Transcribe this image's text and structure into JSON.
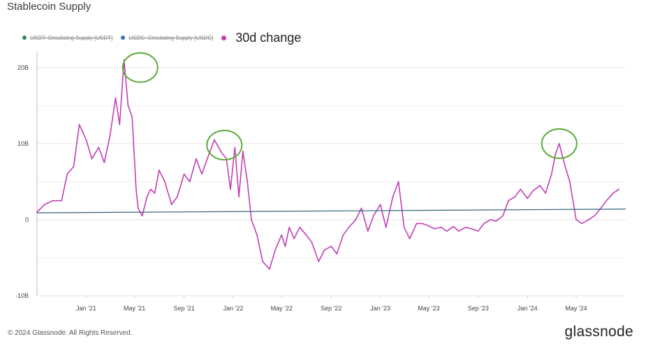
{
  "header": {
    "title": "Stablecoin Supply"
  },
  "legend": [
    {
      "label": "USDT: Circulating Supply [USDT]",
      "color": "#2e8b57",
      "struck": true
    },
    {
      "label": "USDC: Circulating Supply [USDC]",
      "color": "#3b6fb6",
      "struck": true
    },
    {
      "label": "30d change",
      "color": "#c23fb5",
      "struck": false
    }
  ],
  "footer": {
    "copyright": "© 2024 Glassnode. All Rights Reserved."
  },
  "brand": {
    "name": "glassnode"
  },
  "colors": {
    "series": "#c23fb5",
    "trend": "#2f5f7a",
    "highlight": "#5cab3c",
    "grid": "#e6e6e6"
  },
  "chart_data": {
    "type": "line",
    "y_ticks": [
      {
        "value": 20000000000,
        "label": "20B"
      },
      {
        "value": 10000000000,
        "label": "10B"
      },
      {
        "value": 0,
        "label": "0"
      },
      {
        "value": -10000000000,
        "label": "-10B"
      }
    ],
    "x_ticks": [
      {
        "value": "2021-01-01",
        "label": "Jan '21"
      },
      {
        "value": "2021-05-01",
        "label": "May '21"
      },
      {
        "value": "2021-09-01",
        "label": "Sep '21"
      },
      {
        "value": "2022-01-01",
        "label": "Jan '22"
      },
      {
        "value": "2022-05-01",
        "label": "May '22"
      },
      {
        "value": "2022-09-01",
        "label": "Sep '22"
      },
      {
        "value": "2023-01-01",
        "label": "Jan '23"
      },
      {
        "value": "2023-05-01",
        "label": "May '23"
      },
      {
        "value": "2023-09-01",
        "label": "Sep '23"
      },
      {
        "value": "2024-01-01",
        "label": "Jan '24"
      },
      {
        "value": "2024-05-01",
        "label": "May '24"
      }
    ],
    "ylim": [
      -10000000000,
      22000000000
    ],
    "xlim": [
      "2020-09-01",
      "2024-09-01"
    ],
    "series": [
      {
        "color": "#c23fb5",
        "x": [
          "2020-09-01",
          "2020-09-20",
          "2020-10-10",
          "2020-11-01",
          "2020-11-15",
          "2020-12-01",
          "2020-12-15",
          "2021-01-01",
          "2021-01-15",
          "2021-02-01",
          "2021-02-15",
          "2021-03-01",
          "2021-03-15",
          "2021-03-25",
          "2021-04-05",
          "2021-04-15",
          "2021-04-25",
          "2021-05-05",
          "2021-05-10",
          "2021-05-15",
          "2021-05-20",
          "2021-06-01",
          "2021-06-10",
          "2021-06-20",
          "2021-07-01",
          "2021-07-15",
          "2021-08-01",
          "2021-08-15",
          "2021-09-01",
          "2021-09-15",
          "2021-10-01",
          "2021-10-15",
          "2021-11-01",
          "2021-11-15",
          "2021-12-01",
          "2021-12-15",
          "2021-12-25",
          "2022-01-05",
          "2022-01-15",
          "2022-01-25",
          "2022-02-05",
          "2022-02-15",
          "2022-03-01",
          "2022-03-15",
          "2022-04-01",
          "2022-04-15",
          "2022-05-01",
          "2022-05-10",
          "2022-05-20",
          "2022-06-01",
          "2022-06-15",
          "2022-07-01",
          "2022-07-15",
          "2022-08-01",
          "2022-08-15",
          "2022-09-01",
          "2022-09-15",
          "2022-10-01",
          "2022-10-15",
          "2022-11-01",
          "2022-11-15",
          "2022-12-01",
          "2022-12-15",
          "2023-01-01",
          "2023-01-15",
          "2023-02-01",
          "2023-02-15",
          "2023-03-01",
          "2023-03-15",
          "2023-04-01",
          "2023-04-15",
          "2023-05-01",
          "2023-05-15",
          "2023-06-01",
          "2023-06-15",
          "2023-07-01",
          "2023-07-15",
          "2023-08-01",
          "2023-08-15",
          "2023-09-01",
          "2023-09-15",
          "2023-10-01",
          "2023-10-15",
          "2023-11-01",
          "2023-11-15",
          "2023-12-01",
          "2023-12-15",
          "2024-01-01",
          "2024-01-15",
          "2024-02-01",
          "2024-02-15",
          "2024-03-01",
          "2024-03-10",
          "2024-03-20",
          "2024-04-01",
          "2024-04-15",
          "2024-05-01",
          "2024-05-15",
          "2024-06-01",
          "2024-06-15",
          "2024-07-01",
          "2024-07-15",
          "2024-08-01",
          "2024-08-15"
        ],
        "y": [
          1000000000,
          2000000000,
          2500000000,
          2500000000,
          6000000000,
          7000000000,
          12500000000,
          10500000000,
          8000000000,
          9500000000,
          7500000000,
          11000000000,
          16000000000,
          12500000000,
          21000000000,
          15000000000,
          13500000000,
          4000000000,
          1500000000,
          1000000000,
          500000000,
          3000000000,
          4000000000,
          3500000000,
          6500000000,
          5000000000,
          2000000000,
          3000000000,
          6000000000,
          5000000000,
          8000000000,
          6000000000,
          8500000000,
          10500000000,
          9000000000,
          8000000000,
          4000000000,
          9500000000,
          3000000000,
          9000000000,
          5000000000,
          0,
          -2000000000,
          -5500000000,
          -6500000000,
          -4000000000,
          -2000000000,
          -3500000000,
          -1000000000,
          -2500000000,
          -1000000000,
          -2000000000,
          -3000000000,
          -5500000000,
          -4000000000,
          -3500000000,
          -4500000000,
          -2000000000,
          -1000000000,
          0,
          1500000000,
          -1500000000,
          500000000,
          2000000000,
          -1000000000,
          3000000000,
          5000000000,
          -1000000000,
          -2500000000,
          -500000000,
          -500000000,
          -800000000,
          -1200000000,
          -1000000000,
          -1500000000,
          -900000000,
          -1500000000,
          -1000000000,
          -1200000000,
          -1500000000,
          -500000000,
          0,
          -200000000,
          500000000,
          2500000000,
          3000000000,
          4000000000,
          2800000000,
          3800000000,
          4500000000,
          3500000000,
          6000000000,
          8500000000,
          10000000000,
          7500000000,
          5000000000,
          0,
          -500000000,
          0,
          500000000,
          1500000000,
          2500000000,
          3500000000,
          4000000000
        ]
      },
      {
        "color": "#2f5f7a",
        "x": [
          "2020-09-01",
          "2024-09-01"
        ],
        "y": [
          900000000,
          1400000000
        ]
      }
    ],
    "annotations": [
      {
        "type": "circle",
        "x": "2021-05-15",
        "y": 20000000000,
        "color": "#5cab3c"
      },
      {
        "type": "circle",
        "x": "2021-12-10",
        "y": 9800000000,
        "color": "#5cab3c"
      },
      {
        "type": "circle",
        "x": "2024-03-20",
        "y": 10000000000,
        "color": "#5cab3c"
      }
    ]
  }
}
